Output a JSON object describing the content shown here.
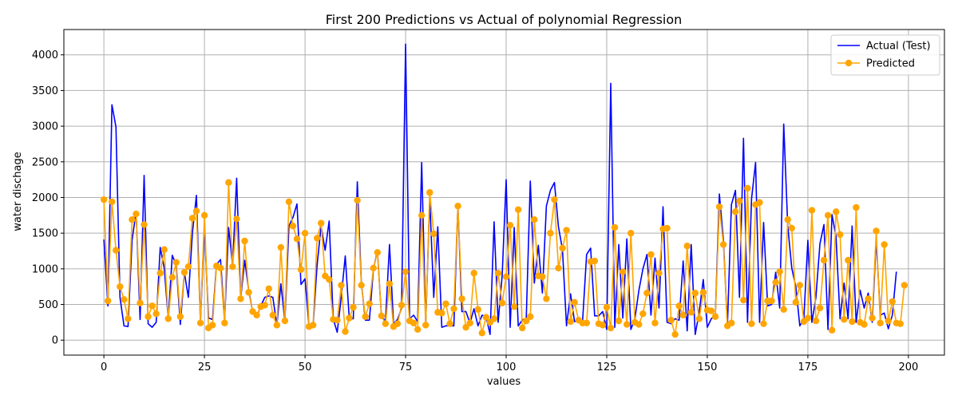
{
  "chart_data": {
    "type": "line",
    "title": "First 200 Predictions vs Actual of polynomial Regression",
    "xlabel": "values",
    "ylabel": "water dischage",
    "xlim": [
      -9.95,
      208.95
    ],
    "ylim": [
      -210,
      4355
    ],
    "xticks": [
      0,
      25,
      50,
      75,
      100,
      125,
      150,
      175,
      200
    ],
    "yticks": [
      0,
      500,
      1000,
      1500,
      2000,
      2500,
      3000,
      3500,
      4000
    ],
    "grid": true,
    "legend_position": "top-right",
    "series": [
      {
        "name": "Actual (Test)",
        "color": "#0000ff",
        "marker": "none",
        "values": [
          1410,
          480,
          3300,
          2990,
          600,
          200,
          190,
          1400,
          1800,
          290,
          2310,
          230,
          180,
          250,
          1300,
          1010,
          300,
          1190,
          1050,
          220,
          950,
          600,
          1500,
          2030,
          250,
          1600,
          310,
          290,
          1060,
          1130,
          270,
          1580,
          1050,
          2270,
          580,
          1120,
          700,
          390,
          330,
          480,
          600,
          620,
          600,
          210,
          790,
          260,
          1600,
          1720,
          1910,
          780,
          860,
          190,
          200,
          1050,
          1600,
          1260,
          1670,
          300,
          110,
          600,
          1180,
          300,
          300,
          2220,
          800,
          280,
          280,
          1000,
          1250,
          330,
          270,
          1340,
          230,
          290,
          450,
          4150,
          300,
          350,
          260,
          2490,
          230,
          1980,
          600,
          1590,
          180,
          200,
          200,
          200,
          1900,
          400,
          400,
          240,
          440,
          200,
          350,
          330,
          80,
          1660,
          250,
          900,
          2250,
          180,
          1580,
          200,
          280,
          310,
          2230,
          800,
          1330,
          660,
          1880,
          2100,
          2210,
          1590,
          1270,
          200,
          650,
          260,
          270,
          270,
          1200,
          1290,
          340,
          340,
          400,
          150,
          3600,
          180,
          1340,
          310,
          1420,
          150,
          300,
          700,
          1000,
          1200,
          350,
          1150,
          450,
          1870,
          250,
          230,
          300,
          280,
          1110,
          130,
          1340,
          80,
          400,
          850,
          180,
          300,
          350,
          2050,
          1400,
          200,
          1900,
          2100,
          600,
          2830,
          250,
          1980,
          2490,
          250,
          1650,
          480,
          500,
          950,
          450,
          3030,
          1600,
          1010,
          750,
          200,
          300,
          1400,
          250,
          600,
          1350,
          1620,
          150,
          1760,
          1450,
          300,
          800,
          300,
          1600,
          250,
          700,
          450,
          660,
          250,
          1420,
          350,
          380,
          160,
          350,
          960
        ]
      },
      {
        "name": "Predicted",
        "color": "#ffa500",
        "marker": "circle",
        "values": [
          1970,
          550,
          1940,
          1260,
          750,
          570,
          300,
          1690,
          1770,
          520,
          1620,
          330,
          480,
          370,
          940,
          1270,
          300,
          880,
          1090,
          330,
          950,
          1030,
          1710,
          1810,
          240,
          1750,
          170,
          210,
          1040,
          1010,
          240,
          2210,
          1030,
          1700,
          580,
          1390,
          670,
          400,
          350,
          470,
          490,
          720,
          350,
          210,
          1300,
          270,
          1940,
          1600,
          1420,
          990,
          1500,
          190,
          210,
          1430,
          1640,
          900,
          850,
          290,
          280,
          770,
          120,
          310,
          460,
          1960,
          770,
          330,
          510,
          1010,
          1230,
          340,
          230,
          790,
          190,
          230,
          490,
          960,
          270,
          240,
          150,
          1750,
          210,
          2070,
          1490,
          390,
          380,
          510,
          230,
          440,
          1880,
          580,
          180,
          240,
          940,
          430,
          100,
          320,
          250,
          300,
          940,
          520,
          890,
          1610,
          470,
          1830,
          170,
          270,
          330,
          1690,
          900,
          890,
          580,
          1500,
          1970,
          1010,
          1290,
          1540,
          260,
          530,
          280,
          240,
          240,
          1100,
          1110,
          230,
          210,
          460,
          170,
          1580,
          270,
          960,
          220,
          1500,
          250,
          220,
          370,
          660,
          1200,
          240,
          940,
          1560,
          1570,
          280,
          80,
          480,
          350,
          1320,
          390,
          660,
          300,
          670,
          420,
          410,
          330,
          1870,
          1340,
          200,
          240,
          1800,
          1950,
          560,
          2130,
          230,
          1900,
          1930,
          230,
          550,
          550,
          810,
          960,
          430,
          1690,
          1570,
          530,
          770,
          260,
          310,
          1820,
          270,
          450,
          1120,
          1750,
          140,
          1800,
          1480,
          290,
          1120,
          260,
          1860,
          250,
          220,
          580,
          310,
          1530,
          240,
          1340,
          270,
          540,
          240,
          230,
          770
        ]
      }
    ]
  }
}
